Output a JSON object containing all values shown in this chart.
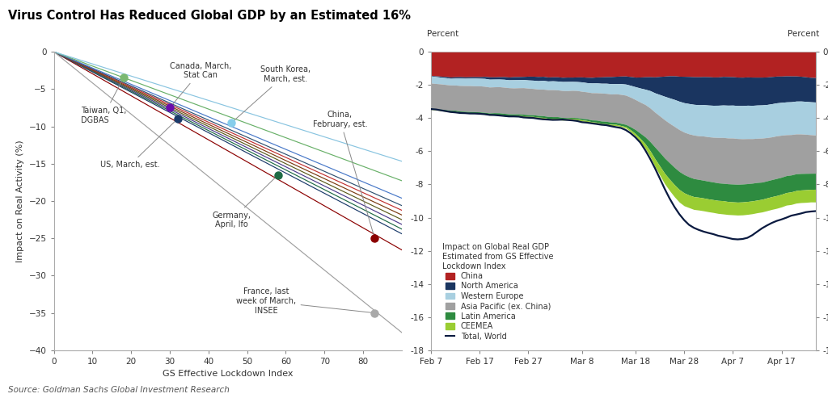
{
  "title": "Virus Control Has Reduced Global GDP by an Estimated 16%",
  "source": "Source: Goldman Sachs Global Investment Research",
  "left_chart": {
    "xlabel": "GS Effective Lockdown Index",
    "ylabel": "Impact on Real Activity (%)",
    "xlim": [
      0,
      90
    ],
    "ylim": [
      -40,
      0
    ],
    "xticks": [
      0,
      10,
      20,
      30,
      40,
      50,
      60,
      70,
      80
    ],
    "yticks": [
      0,
      -5,
      -10,
      -15,
      -20,
      -25,
      -30,
      -35,
      -40
    ]
  },
  "right_chart": {
    "dates_str": [
      "Feb 7",
      "Feb 17",
      "Feb 27",
      "Mar 8",
      "Mar 18",
      "Mar 28",
      "Apr 7",
      "Apr 17"
    ],
    "date_indices": [
      0,
      10,
      20,
      31,
      42,
      52,
      62,
      72
    ],
    "n_points": 80,
    "ylim_top": 0,
    "ylim_bottom": -18,
    "yticks": [
      0,
      -2,
      -4,
      -6,
      -8,
      -10,
      -12,
      -14,
      -16,
      -18
    ],
    "colors": {
      "China": "#B22222",
      "North America": "#1a3560",
      "Western Europe": "#a8cfe0",
      "Asia Pacific (ex. China)": "#a0a0a0",
      "Latin America": "#2e8b40",
      "CEEMEA": "#9acd32",
      "Total World": "#0a1a40"
    }
  },
  "bg_color": "#FFFFFF"
}
